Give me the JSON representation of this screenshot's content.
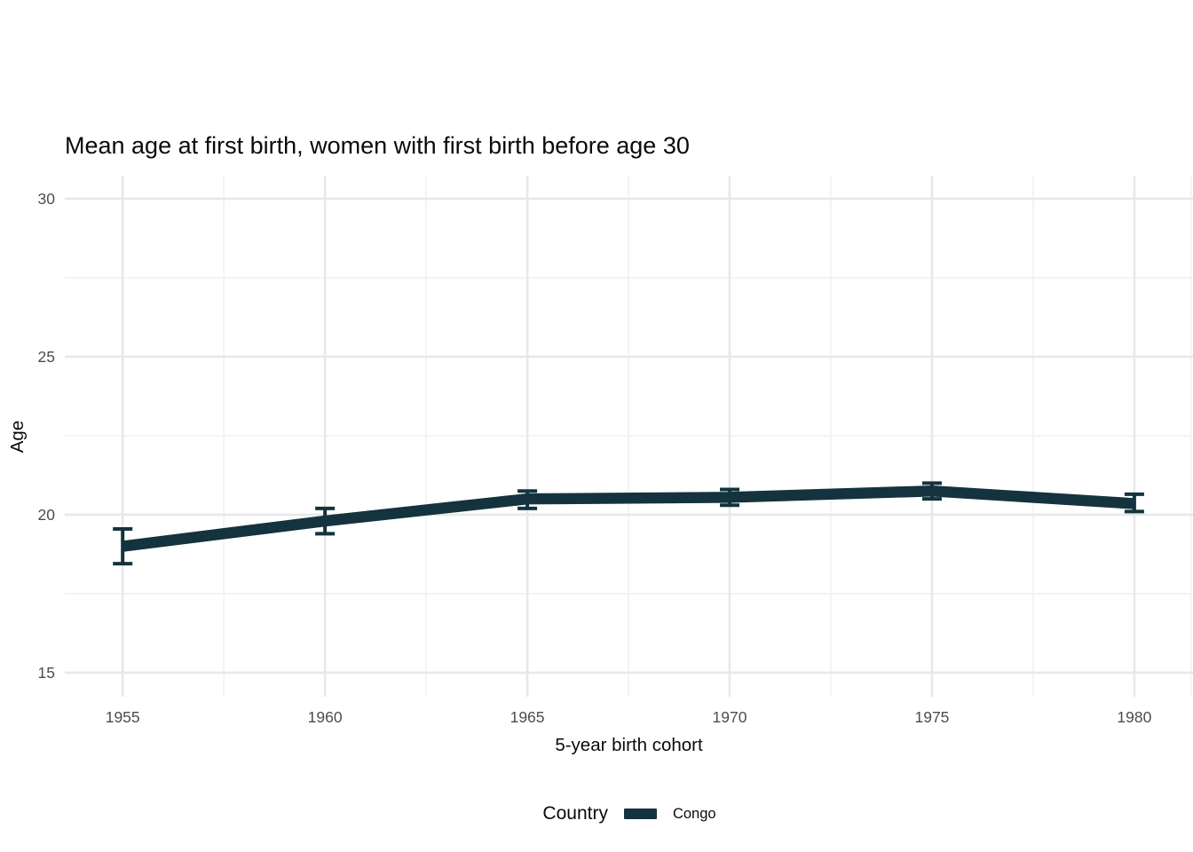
{
  "chart_data": {
    "type": "line",
    "title": "Mean age at first birth, women with first birth before age 30",
    "xlabel": "5-year birth cohort",
    "ylabel": "Age",
    "x_ticks": [
      1955,
      1960,
      1965,
      1970,
      1975,
      1980
    ],
    "x_minor_ticks": [
      1957.5,
      1962.5,
      1967.5,
      1972.5,
      1977.5,
      1981.4
    ],
    "y_ticks": [
      15,
      20,
      25,
      30
    ],
    "y_minor_ticks": [
      17.5,
      22.5,
      27.5
    ],
    "xlim": [
      1953.57,
      1981.45
    ],
    "ylim": [
      14.24,
      30.73
    ],
    "grid": "on",
    "legend_position": "bottom",
    "legend_title": "Country",
    "series": [
      {
        "name": "Congo",
        "color": "#14333E",
        "x": [
          1955,
          1960,
          1965,
          1970,
          1975,
          1980
        ],
        "y": [
          19.0,
          19.8,
          20.5,
          20.55,
          20.75,
          20.35
        ],
        "ci_lower": [
          18.45,
          19.4,
          20.2,
          20.3,
          20.5,
          20.1
        ],
        "ci_upper": [
          19.55,
          20.2,
          20.75,
          20.8,
          21.0,
          20.65
        ]
      }
    ]
  },
  "colors": {
    "background": "#ffffff",
    "grid_major": "#e8e8e8",
    "grid_minor": "#f1f1f1",
    "tick_label": "#4d4d4d",
    "text": "#0a0a0a"
  }
}
